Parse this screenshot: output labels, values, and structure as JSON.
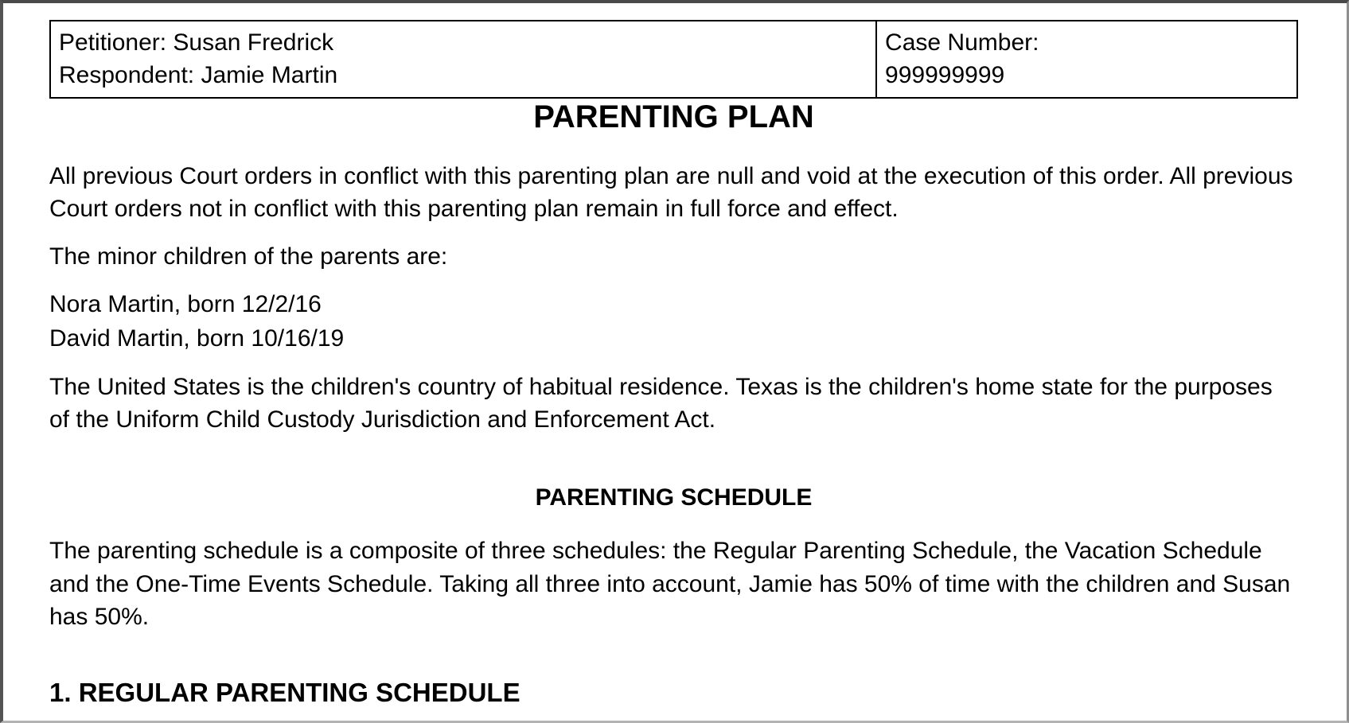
{
  "document": {
    "header_table": {
      "parties": {
        "petitioner_line": "Petitioner: Susan Fredrick",
        "respondent_line": "Respondent: Jamie Martin"
      },
      "case": {
        "label": "Case Number:",
        "number": "999999999"
      }
    },
    "title": "PARENTING PLAN",
    "intro": {
      "orders_paragraph": "All previous Court orders in conflict with this parenting plan are null and void at the execution of this order. All previous Court orders not in conflict with this parenting plan remain in full force and effect.",
      "children_intro": "The minor children of the parents are:",
      "children": [
        "Nora Martin, born 12/2/16",
        "David Martin, born 10/16/19"
      ],
      "residence_paragraph": "The United States is the children's country of habitual residence. Texas is the children's home state for the purposes of the Uniform Child Custody Jurisdiction and Enforcement Act."
    },
    "parenting_schedule_section": {
      "heading": "PARENTING SCHEDULE",
      "composite_paragraph": "The parenting schedule is a composite of three schedules: the Regular Parenting Schedule, the Vacation Schedule and the One-Time Events Schedule. Taking all three into account, Jamie has 50% of time with the children and Susan has 50%.",
      "regular_schedule_heading": "1. REGULAR PARENTING SCHEDULE"
    },
    "colors": {
      "text": "#000000",
      "table_border": "#000000",
      "frame_border_top": "#4a4a4a",
      "frame_border_bottom": "#b3b3b3"
    }
  }
}
